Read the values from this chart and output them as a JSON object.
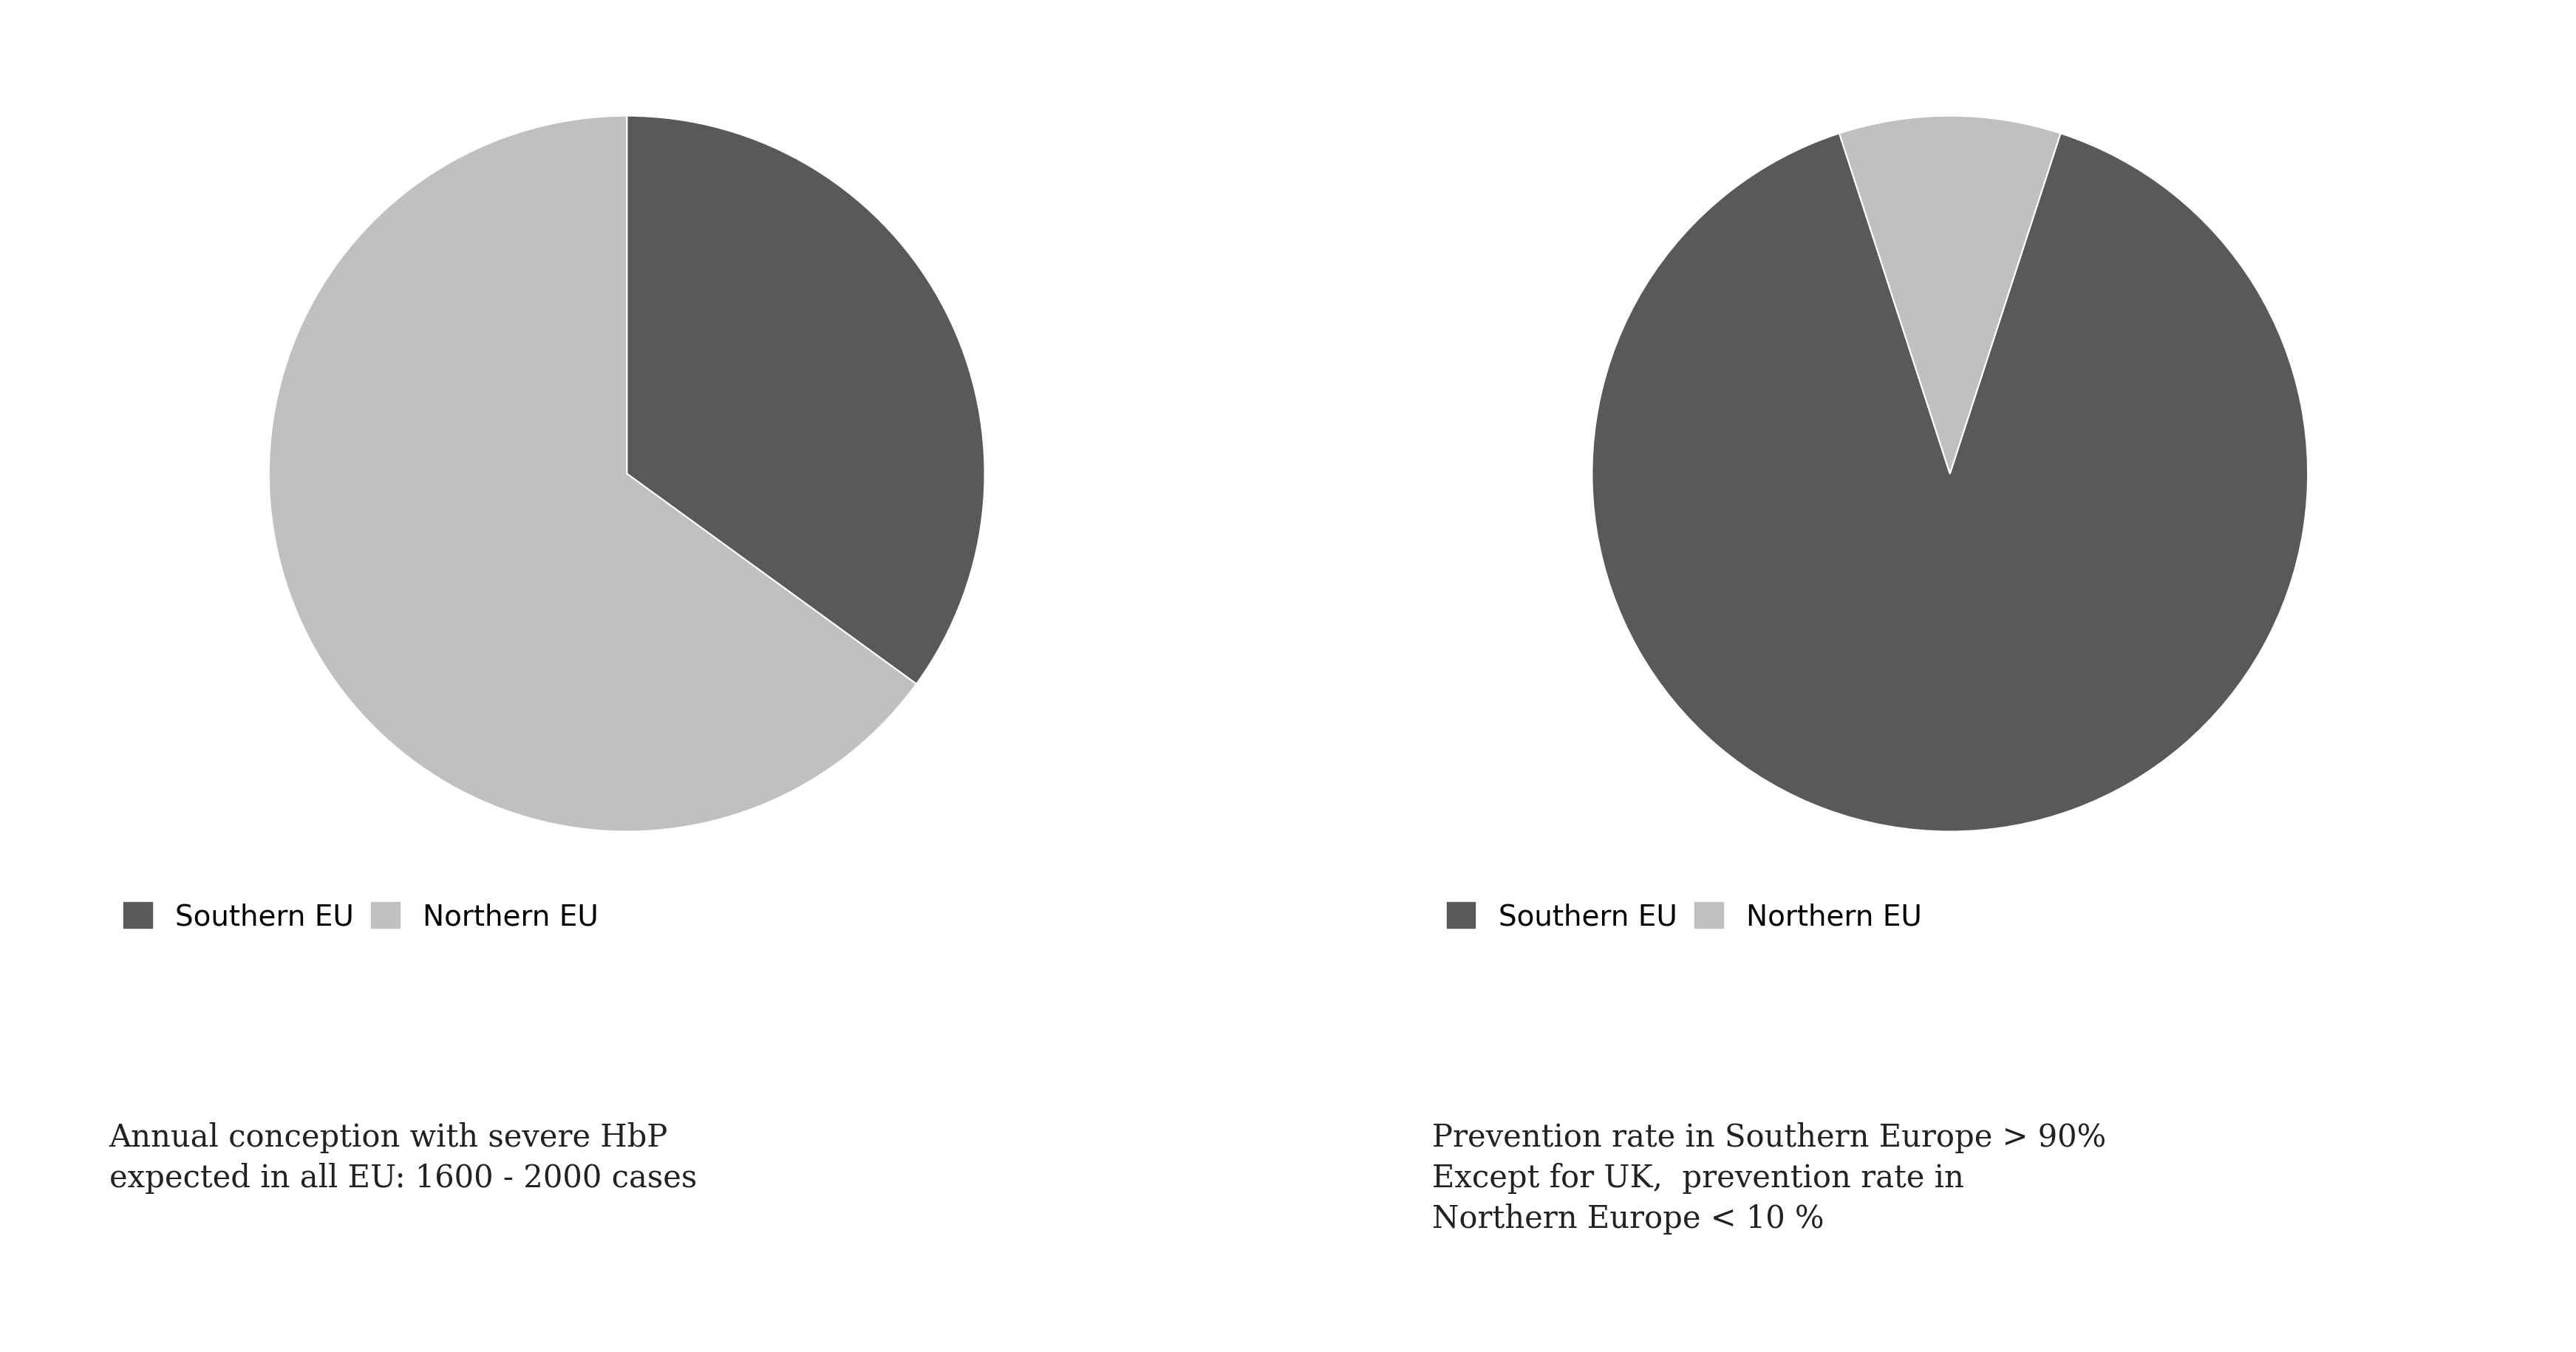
{
  "pie1": {
    "values": [
      35,
      65
    ],
    "colors": [
      "#595959",
      "#c0c0c0"
    ],
    "labels": [
      "Southern EU",
      "Northern EU"
    ],
    "startangle": 90,
    "counterclock": false,
    "caption_lines": [
      "Annual conception with severe HbP",
      "expected in all EU: 1600 - 2000 cases"
    ]
  },
  "pie2": {
    "values": [
      90,
      10
    ],
    "colors": [
      "#595959",
      "#c0c0c0"
    ],
    "labels": [
      "Southern EU",
      "Northern EU"
    ],
    "startangle": 72,
    "counterclock": false,
    "caption_lines": [
      "Prevention rate in Southern Europe > 90%",
      "Except for UK,  prevention rate in",
      "Northern Europe < 10 %"
    ]
  },
  "legend_labels": [
    "Southern EU",
    "Northern EU"
  ],
  "legend_colors": [
    "#595959",
    "#c0c0c0"
  ],
  "background_color": "#ffffff",
  "caption_fontsize": 30,
  "legend_fontsize": 28
}
